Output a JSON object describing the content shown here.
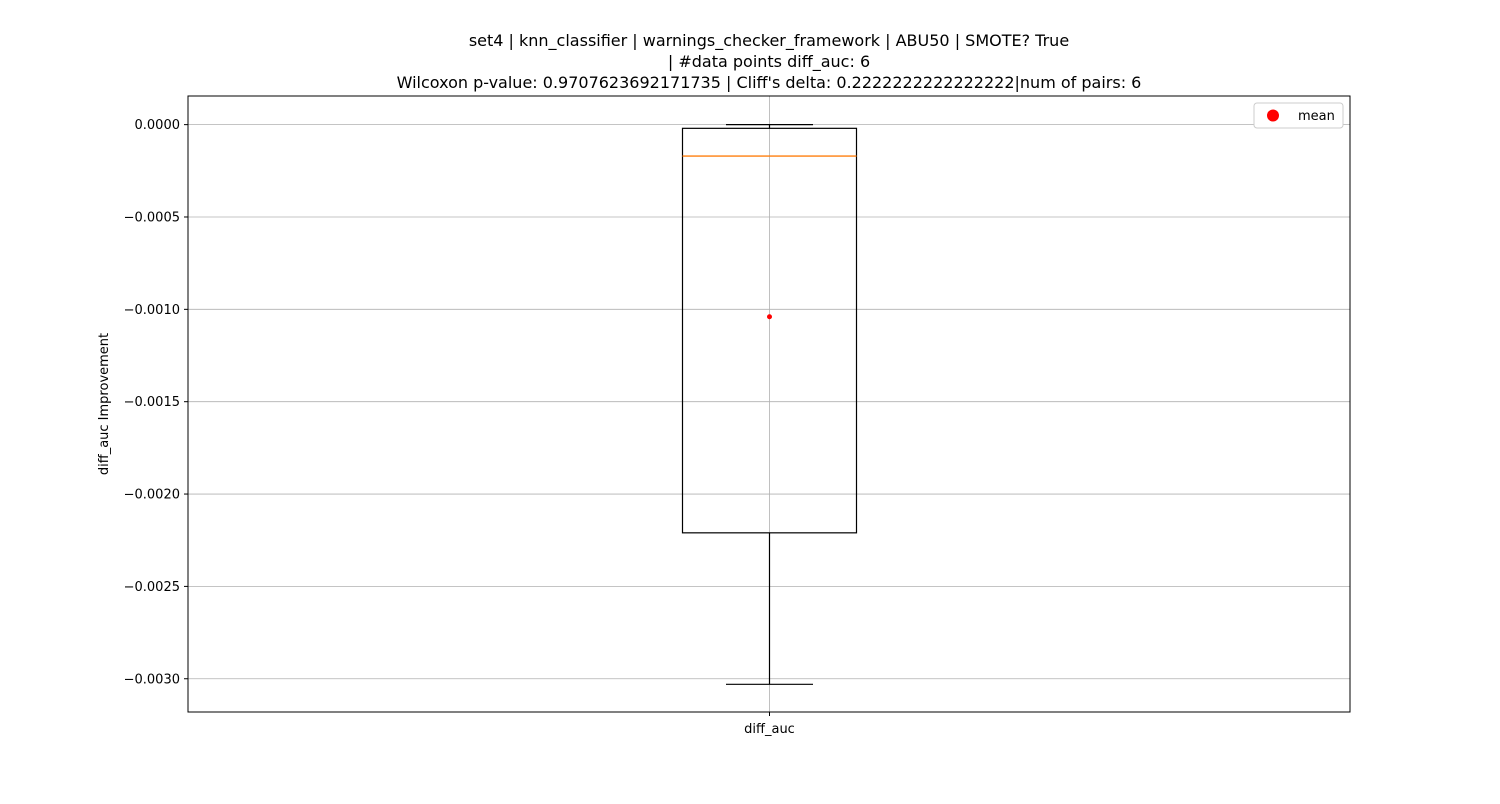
{
  "chart_data": {
    "type": "box",
    "title_lines": [
      "set4 | knn_classifier | warnings_checker_framework | ABU50 | SMOTE? True",
      "| #data points diff_auc: 6",
      "Wilcoxon p-value: 0.9707623692171735 | Cliff's delta: 0.2222222222222222|num of pairs: 6"
    ],
    "xlabel": "",
    "ylabel": "diff_auc Improvement",
    "categories": [
      "diff_auc"
    ],
    "ylim": [
      -0.00318,
      0.000155
    ],
    "yticks": [
      {
        "value": 0.0,
        "label": "0.0000"
      },
      {
        "value": -0.0005,
        "label": "−0.0005"
      },
      {
        "value": -0.001,
        "label": "−0.0010"
      },
      {
        "value": -0.0015,
        "label": "−0.0015"
      },
      {
        "value": -0.002,
        "label": "−0.0020"
      },
      {
        "value": -0.0025,
        "label": "−0.0025"
      },
      {
        "value": -0.003,
        "label": "−0.0030"
      }
    ],
    "box": {
      "whisker_high": 0.0,
      "q3": -2e-05,
      "median": -0.00017,
      "q1": -0.00221,
      "whisker_low": -0.00303,
      "mean": -0.00104
    },
    "grid": true,
    "legend": {
      "position": "top-right",
      "entries": [
        {
          "label": "mean",
          "marker": "circle",
          "color": "#ff0000"
        }
      ]
    },
    "colors": {
      "box": "#000000",
      "median": "#ff7f0e",
      "mean": "#ff0000",
      "grid": "#b0b0b0"
    }
  }
}
